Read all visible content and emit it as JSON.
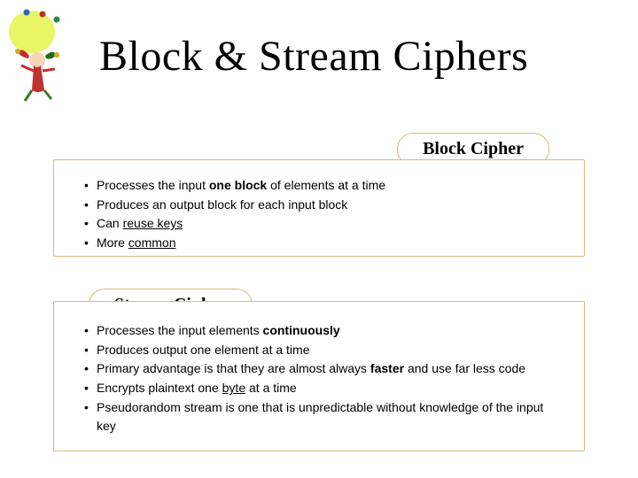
{
  "title": "Block & Stream Ciphers",
  "block": {
    "label": "Block Cipher",
    "items": [
      {
        "pre": "Processes the input ",
        "bold": "one block",
        "post": " of elements at a time",
        "underline": ""
      },
      {
        "pre": "Produces an output block for each input block",
        "bold": "",
        "post": "",
        "underline": ""
      },
      {
        "pre": "Can ",
        "bold": "",
        "post": "",
        "underline": "reuse keys"
      },
      {
        "pre": "More ",
        "bold": "",
        "post": "",
        "underline": "common"
      }
    ]
  },
  "stream": {
    "label": "Stream Cipher",
    "items": [
      {
        "pre": "Processes the input elements ",
        "bold": "continuously",
        "post": "",
        "underline": ""
      },
      {
        "pre": "Produces output one element at a time",
        "bold": "",
        "post": "",
        "underline": ""
      },
      {
        "pre": "Primary advantage is that they are almost always ",
        "bold": "faster",
        "post": " and use far less code",
        "underline": ""
      },
      {
        "pre": "Encrypts plaintext one ",
        "bold": "",
        "post": " at a time",
        "underline": "byte"
      },
      {
        "pre": "Pseudorandom stream is one that is unpredictable without knowledge of the input key",
        "bold": "",
        "post": "",
        "underline": ""
      }
    ]
  },
  "colors": {
    "border": "#d6b97a",
    "title_color": "#000000",
    "text_color": "#000000",
    "background": "#ffffff"
  },
  "fonts": {
    "title_family": "Georgia",
    "title_size_pt": 36,
    "pill_size_pt": 15,
    "body_size_pt": 10.5
  }
}
